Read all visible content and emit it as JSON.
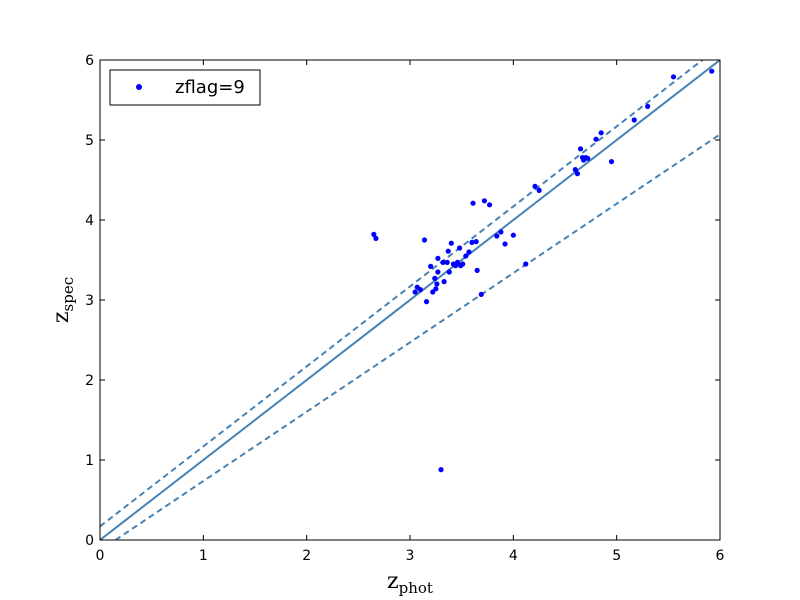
{
  "chart_data": {
    "type": "scatter",
    "xlabel": {
      "base": "z",
      "sub": "phot"
    },
    "ylabel": {
      "base": "z",
      "sub": "spec"
    },
    "xlim": [
      0,
      6
    ],
    "ylim": [
      0,
      6
    ],
    "xticks": [
      "0",
      "1",
      "2",
      "3",
      "4",
      "5",
      "6"
    ],
    "yticks": [
      "0",
      "1",
      "2",
      "3",
      "4",
      "5",
      "6"
    ],
    "grid": false,
    "legend_position": "top-left",
    "series": [
      {
        "name": "zflag=9",
        "color": "#0000ff",
        "points": [
          [
            2.65,
            3.82
          ],
          [
            2.67,
            3.77
          ],
          [
            3.05,
            3.1
          ],
          [
            3.07,
            3.16
          ],
          [
            3.1,
            3.13
          ],
          [
            3.14,
            3.75
          ],
          [
            3.16,
            2.98
          ],
          [
            3.2,
            3.42
          ],
          [
            3.22,
            3.1
          ],
          [
            3.24,
            3.27
          ],
          [
            3.25,
            3.14
          ],
          [
            3.26,
            3.2
          ],
          [
            3.27,
            3.35
          ],
          [
            3.27,
            3.52
          ],
          [
            3.3,
            0.88
          ],
          [
            3.32,
            3.47
          ],
          [
            3.33,
            3.23
          ],
          [
            3.36,
            3.47
          ],
          [
            3.37,
            3.61
          ],
          [
            3.38,
            3.35
          ],
          [
            3.4,
            3.71
          ],
          [
            3.42,
            3.45
          ],
          [
            3.44,
            3.43
          ],
          [
            3.46,
            3.47
          ],
          [
            3.48,
            3.65
          ],
          [
            3.49,
            3.43
          ],
          [
            3.51,
            3.45
          ],
          [
            3.54,
            3.55
          ],
          [
            3.57,
            3.6
          ],
          [
            3.6,
            3.72
          ],
          [
            3.61,
            4.21
          ],
          [
            3.64,
            3.73
          ],
          [
            3.65,
            3.37
          ],
          [
            3.69,
            3.07
          ],
          [
            3.72,
            4.24
          ],
          [
            3.77,
            4.19
          ],
          [
            3.84,
            3.8
          ],
          [
            3.88,
            3.85
          ],
          [
            3.92,
            3.7
          ],
          [
            4.0,
            3.81
          ],
          [
            4.12,
            3.45
          ],
          [
            4.21,
            4.42
          ],
          [
            4.25,
            4.37
          ],
          [
            4.6,
            4.63
          ],
          [
            4.62,
            4.58
          ],
          [
            4.65,
            4.89
          ],
          [
            4.67,
            4.78
          ],
          [
            4.68,
            4.75
          ],
          [
            4.7,
            4.78
          ],
          [
            4.72,
            4.77
          ],
          [
            4.8,
            5.01
          ],
          [
            4.85,
            5.09
          ],
          [
            4.95,
            4.73
          ],
          [
            5.17,
            5.25
          ],
          [
            5.3,
            5.42
          ],
          [
            5.55,
            5.79
          ],
          [
            5.92,
            5.86
          ]
        ]
      }
    ],
    "lines": [
      {
        "name": "",
        "style": "solid",
        "color": "#4682b4",
        "x": [
          0,
          6
        ],
        "y": [
          0,
          6
        ]
      },
      {
        "name": "",
        "style": "dashed",
        "color": "#4682b4",
        "x": [
          0,
          6
        ],
        "y": [
          0.17,
          6.17
        ]
      },
      {
        "name": "",
        "style": "dashed",
        "color": "#4682b4",
        "x": [
          0.15,
          6
        ],
        "y": [
          0,
          5.07
        ]
      }
    ]
  }
}
